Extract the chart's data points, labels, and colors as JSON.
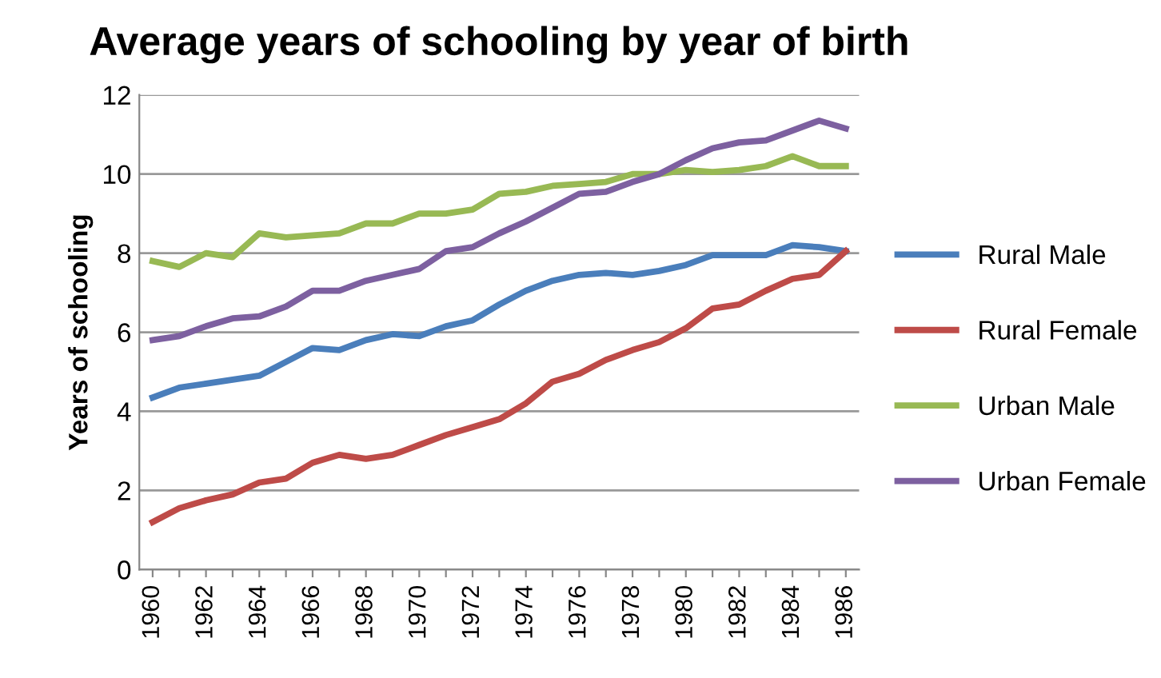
{
  "chart_data": {
    "type": "line",
    "title": "Average years of schooling by year of birth",
    "ylabel": "Years of schooling",
    "categories": [
      "1960",
      null,
      "1962",
      null,
      "1964",
      null,
      "1966",
      null,
      "1968",
      null,
      "1970",
      null,
      "1972",
      null,
      "1974",
      null,
      "1976",
      null,
      "1978",
      null,
      "1980",
      null,
      "1982",
      null,
      "1984",
      null,
      "1986"
    ],
    "series": [
      {
        "name": "Rural Male",
        "color": "#4a7ebb",
        "values": [
          4.35,
          4.6,
          4.7,
          4.8,
          4.9,
          5.25,
          5.6,
          5.55,
          5.8,
          5.95,
          5.9,
          6.15,
          6.3,
          6.7,
          7.05,
          7.3,
          7.45,
          7.5,
          7.45,
          7.55,
          7.7,
          7.95,
          7.95,
          7.95,
          8.2,
          8.15,
          8.05
        ]
      },
      {
        "name": "Rural Female",
        "color": "#be4b48",
        "values": [
          1.2,
          1.55,
          1.75,
          1.9,
          2.2,
          2.3,
          2.7,
          2.9,
          2.8,
          2.9,
          3.15,
          3.4,
          3.6,
          3.8,
          4.2,
          4.75,
          4.95,
          5.3,
          5.55,
          5.75,
          6.1,
          6.6,
          6.7,
          7.05,
          7.35,
          7.45,
          8.05
        ]
      },
      {
        "name": "Urban Male",
        "color": "#98b954",
        "values": [
          7.8,
          7.65,
          8.0,
          7.9,
          8.5,
          8.4,
          8.45,
          8.5,
          8.75,
          8.75,
          9.0,
          9.0,
          9.1,
          9.5,
          9.55,
          9.7,
          9.75,
          9.8,
          10.0,
          10.0,
          10.1,
          10.05,
          10.1,
          10.2,
          10.45,
          10.2,
          10.2
        ]
      },
      {
        "name": "Urban Female",
        "color": "#7d60a0",
        "values": [
          5.8,
          5.9,
          6.15,
          6.35,
          6.4,
          6.65,
          7.05,
          7.05,
          7.3,
          7.45,
          7.6,
          8.05,
          8.15,
          8.5,
          8.8,
          9.15,
          9.5,
          9.55,
          9.8,
          10.0,
          10.35,
          10.65,
          10.8,
          10.85,
          11.1,
          11.35,
          11.15
        ]
      }
    ],
    "ylim": [
      0,
      12
    ],
    "yticks": [
      0,
      2,
      4,
      6,
      8,
      10,
      12
    ],
    "grid": "y",
    "legend": "right",
    "marker": "none",
    "line_style": "solid"
  }
}
